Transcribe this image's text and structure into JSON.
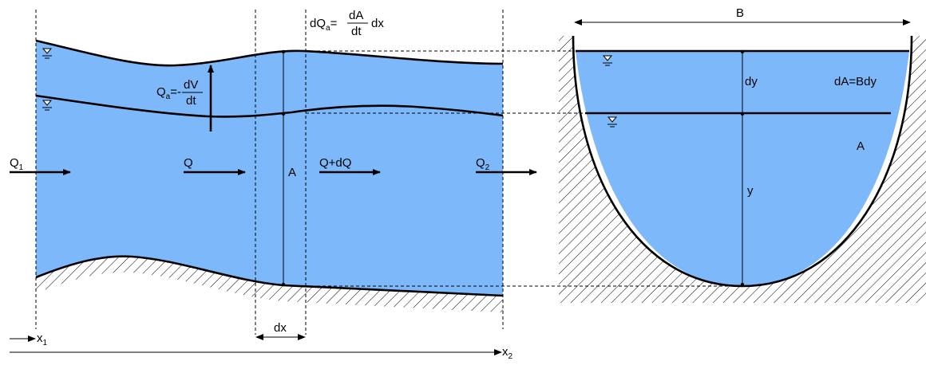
{
  "colors": {
    "water": "#7db8fa",
    "line": "#000000",
    "background": "#ffffff"
  },
  "labels": {
    "q1_main": "Q",
    "q1_sub": "1",
    "q": "Q",
    "a_left": "A",
    "q_dq": "Q+dQ",
    "q2_main": "Q",
    "q2_sub": "2",
    "qa_lhs": "Q",
    "qa_sub": "a",
    "qa_eq": "=-",
    "qa_num": "dV",
    "qa_den": "dt",
    "dqa_lhs": "dQ",
    "dqa_sub": "a",
    "dqa_eq": "=",
    "dqa_num": "dA",
    "dqa_den": "dt",
    "dqa_tail": "dx",
    "dx": "dx",
    "x1_main": "x",
    "x1_sub": "1",
    "x2_main": "x",
    "x2_sub": "2",
    "b": "B",
    "dy": "dy",
    "da_bdy": "dA=Bdy",
    "a_right": "A",
    "y": "y"
  }
}
